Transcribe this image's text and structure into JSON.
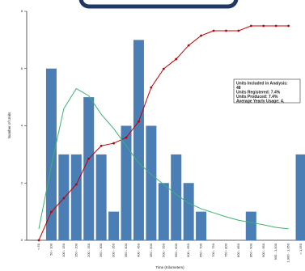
{
  "chart_data": {
    "type": "bar",
    "x_label": "Time (Kilometers)",
    "y_label": "Number of Units",
    "categories": [
      "< 50",
      "50 - 100",
      "100 - 150",
      "150 - 200",
      "200 - 250",
      "250 - 300",
      "300 - 350",
      "350 - 400",
      "400 - 450",
      "450 - 500",
      "500 - 550",
      "550 - 600",
      "600 - 650",
      "650 - 700",
      "700 - 750",
      "750 - 800",
      "800 - 850",
      "850 - 900",
      "900 - 950",
      "950 - 1,000",
      "1,000 - 1,050",
      "> 1,050"
    ],
    "series": [
      {
        "type": "bar",
        "color": "#4a7eb4",
        "values": [
          0,
          6,
          3,
          3,
          5,
          3,
          1,
          4,
          7,
          4,
          2,
          3,
          2,
          1,
          0,
          0,
          0,
          1,
          0,
          0,
          0,
          3
        ]
      },
      {
        "type": "line",
        "color": "#c00000",
        "markers": true,
        "values": [
          0,
          0.99,
          1.47,
          1.95,
          2.85,
          3.3,
          3.39,
          3.59,
          4.15,
          5.34,
          5.99,
          6.33,
          6.81,
          7.15,
          7.32,
          7.32,
          7.32,
          7.49,
          7.49,
          7.49,
          7.49,
          null
        ]
      },
      {
        "type": "line",
        "color": "#3cb371",
        "markers": false,
        "values": [
          0.4,
          2.6,
          4.6,
          5.3,
          5.05,
          4.4,
          3.9,
          3.3,
          2.7,
          2.3,
          1.95,
          1.6,
          1.3,
          1.1,
          0.96,
          0.82,
          0.7,
          0.62,
          0.54,
          0.45,
          0.4,
          null
        ]
      }
    ],
    "ylim": [
      0,
      8
    ],
    "yticks": [
      0,
      2,
      4,
      6,
      8
    ],
    "grid": false,
    "annotation": [
      "Units Included in Analysis:",
      "48",
      "Units Registered:  7.4%",
      "Units Produced: 7.4%",
      "Average  Yearly  Usage: 4."
    ]
  }
}
